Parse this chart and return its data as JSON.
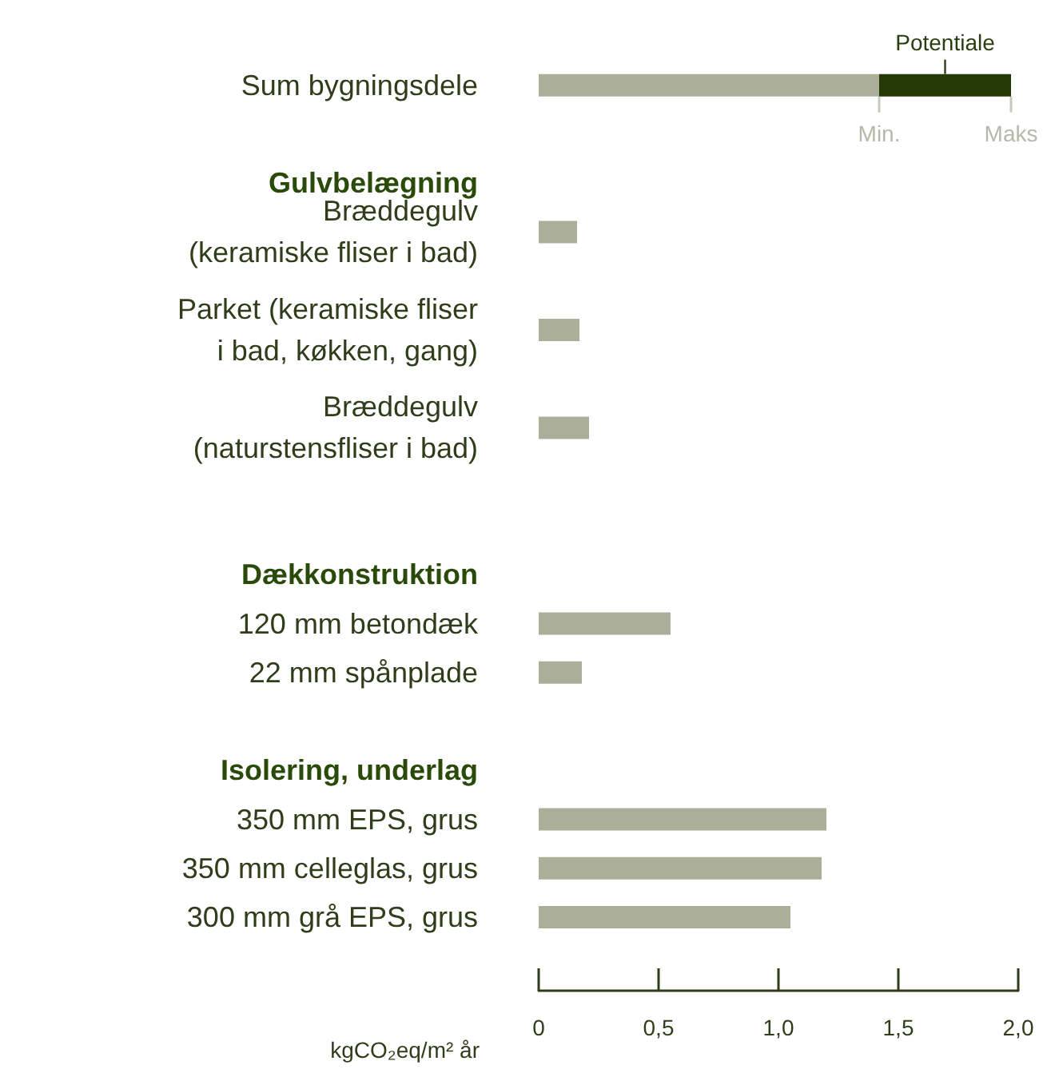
{
  "chart_data": {
    "type": "bar",
    "orientation": "horizontal",
    "stacked": true,
    "xlabel": "kgCO₂eq/m² år",
    "categories": [
      "Sum bygningsdele",
      null,
      "Gulvbelægning",
      "Bræddegulv\n(keramiske fliser i bad)",
      null,
      "Parket (keramiske fliser\ni bad, køkken, gang)",
      null,
      "Bræddegulv\n(naturstensfliser i bad)",
      null,
      null,
      "Dækkonstruktion",
      "120 mm betondæk",
      "22 mm spånplade",
      null,
      "Isolering, underlag",
      "350 mm EPS, grus",
      "350 mm celleglas, grus",
      "300 mm grå EPS, grus",
      null
    ],
    "series": [
      {
        "color": "#abae99",
        "values": [
          1.42,
          null,
          null,
          0.16,
          null,
          0.17,
          null,
          0.21,
          null,
          null,
          null,
          0.55,
          0.18,
          null,
          null,
          1.2,
          1.18,
          1.05,
          null
        ]
      },
      {
        "color": "#233a06",
        "values": [
          0.55,
          null,
          null,
          null,
          null,
          null,
          null,
          null,
          null,
          null,
          null,
          null,
          null,
          null,
          null,
          null,
          null,
          null,
          null
        ]
      }
    ],
    "xlim": [
      0,
      2
    ],
    "xticks": [
      0,
      {
        "value": 0.5,
        "label": "0,5"
      },
      {
        "value": 1,
        "label": "1,0"
      },
      {
        "value": 1.5,
        "label": "1,5"
      },
      {
        "value": 2,
        "label": "2,0"
      }
    ],
    "annotations": [
      "Potentiale",
      {
        "text": "Min.",
        "x": 1.42,
        "y": "Sum bygningsdele"
      },
      {
        "text": "Maks",
        "x": 1.97,
        "y": "Sum bygningsdele"
      }
    ],
    "grid": false
  }
}
